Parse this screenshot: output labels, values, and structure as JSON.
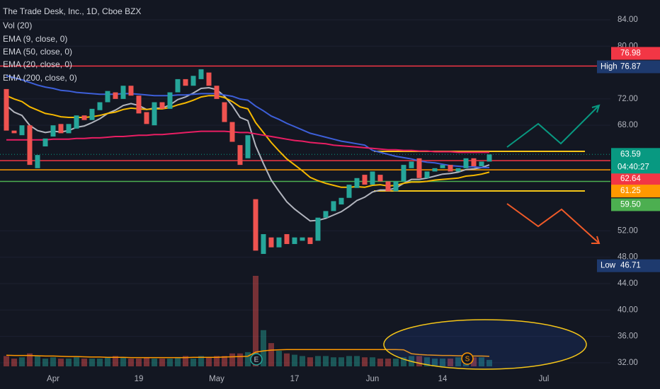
{
  "chart_data": {
    "type": "candlestick",
    "title": "The Trade Desk, Inc., 1D, Cboe BZX",
    "volume_name": "Vol (20)",
    "categories": [
      null,
      null,
      null,
      null,
      null,
      null,
      "Apr",
      null,
      null,
      null,
      null,
      null,
      null,
      null,
      null,
      null,
      null,
      "19",
      null,
      null,
      null,
      null,
      null,
      null,
      null,
      null,
      null,
      "May",
      null,
      null,
      null,
      null,
      null,
      null,
      null,
      null,
      null,
      "17",
      null,
      null,
      null,
      null,
      null,
      null,
      null,
      null,
      null,
      "Jun",
      null,
      null,
      null,
      null,
      null,
      null,
      null,
      null,
      "14",
      null,
      null,
      null,
      null,
      null,
      null,
      null,
      null,
      null,
      null,
      null,
      null,
      "Jul"
    ],
    "open": [
      73.5,
      67.2,
      66.5,
      68.0,
      61.5,
      64.8,
      66.3,
      68.2,
      66.8,
      67.5,
      69.5,
      68.8,
      70.3,
      71.5,
      73.0,
      72.0,
      74.0,
      72.5,
      70.0,
      68.0,
      71.5,
      70.5,
      73.0,
      75.0,
      74.0,
      75.0,
      76.0,
      74.0,
      71.5,
      68.5,
      65.0,
      63.0,
      56.8,
      48.5,
      51.0,
      49.5,
      51.5,
      50.0,
      50.5,
      51.0,
      50.5,
      54.0,
      55.0,
      56.0,
      57.0,
      58.5,
      60.5,
      59.0,
      60.5,
      59.5,
      58.0,
      59.5,
      61.5,
      63.0,
      60.0,
      61.0,
      61.5,
      62.0,
      61.0,
      61.5,
      63.0,
      61.8,
      62.5,
      null,
      null,
      null,
      null,
      null,
      null,
      null
    ],
    "high": {
      "label": "High",
      "value": 76.87
    },
    "low": {
      "label": "Low",
      "value": 46.71
    },
    "close": [
      67.2,
      66.8,
      68.0,
      62.0,
      63.5,
      66.0,
      68.0,
      66.8,
      68.2,
      69.5,
      68.8,
      70.5,
      71.5,
      73.2,
      72.0,
      74.0,
      72.5,
      69.8,
      68.2,
      71.5,
      70.5,
      73.0,
      75.0,
      74.0,
      75.5,
      76.5,
      74.0,
      72.0,
      68.5,
      65.5,
      62.0,
      66.5,
      49.0,
      51.5,
      49.5,
      51.0,
      50.0,
      51.0,
      51.0,
      50.0,
      54.0,
      55.0,
      56.5,
      57.0,
      59.0,
      60.0,
      59.0,
      61.0,
      59.5,
      58.0,
      59.5,
      62.0,
      62.5,
      60.0,
      61.0,
      61.5,
      62.0,
      61.0,
      61.5,
      63.0,
      61.8,
      62.5,
      63.59,
      null,
      null,
      null,
      null,
      null,
      null,
      null
    ],
    "volume": [
      4,
      3,
      3.5,
      5,
      4,
      3,
      3.5,
      3,
      3,
      3.5,
      3,
      3,
      3,
      3.5,
      4,
      3.5,
      3,
      3,
      3.5,
      3,
      3,
      3,
      3.5,
      4,
      3,
      4,
      3.5,
      4,
      4,
      5,
      5,
      5.5,
      35,
      14,
      9,
      6,
      5,
      4.5,
      4,
      3.5,
      4,
      4,
      3.5,
      3.5,
      4,
      4,
      3.5,
      3.5,
      3,
      3,
      3,
      3.5,
      4,
      4,
      3.5,
      3,
      3,
      3,
      3.5,
      3,
      3.5,
      3.5,
      2.5,
      null,
      null,
      null,
      null,
      null,
      null,
      null
    ],
    "volume_ma": [
      4.3,
      4.2,
      4.2,
      4.2,
      4.1,
      4.0,
      4.0,
      3.9,
      3.8,
      3.8,
      3.7,
      3.6,
      3.6,
      3.5,
      3.5,
      3.5,
      3.4,
      3.4,
      3.4,
      3.4,
      3.4,
      3.4,
      3.4,
      3.4,
      3.5,
      3.5,
      3.5,
      3.5,
      3.6,
      3.7,
      3.8,
      3.9,
      5.5,
      6.0,
      6.3,
      6.4,
      6.5,
      6.5,
      6.5,
      6.5,
      6.5,
      6.5,
      6.5,
      6.5,
      6.5,
      6.5,
      6.5,
      6.5,
      6.5,
      6.5,
      6.5,
      6.4,
      4.9,
      4.6,
      4.4,
      4.3,
      4.2,
      4.2,
      4.1,
      4.1,
      4.0,
      4.0,
      3.9,
      null,
      null,
      null,
      null,
      null,
      null,
      null
    ],
    "volume_ma_color": "#ff9800",
    "up_color": "#26a69a",
    "down_color": "#ef5350",
    "series": [
      {
        "name": "EMA (9, close, 0)",
        "color": "#b2b5be",
        "values": [
          71.0,
          70.0,
          69.5,
          68.0,
          67.2,
          66.9,
          67.1,
          67.0,
          67.2,
          67.7,
          67.9,
          68.4,
          69.0,
          69.8,
          70.3,
          71.0,
          71.3,
          71.0,
          70.4,
          70.6,
          70.6,
          71.1,
          71.9,
          72.3,
          72.9,
          73.6,
          73.7,
          73.4,
          72.4,
          71.0,
          69.2,
          68.7,
          64.9,
          62.2,
          59.7,
          58.0,
          56.4,
          55.3,
          54.4,
          53.5,
          53.6,
          53.9,
          54.4,
          54.9,
          55.7,
          56.6,
          57.1,
          57.9,
          58.2,
          58.2,
          58.5,
          59.2,
          59.8,
          59.8,
          60.0,
          60.3,
          60.6,
          60.7,
          60.9,
          61.3,
          61.4,
          61.6,
          62.0,
          null,
          null,
          null,
          null,
          null,
          null,
          null
        ]
      },
      {
        "name": "EMA (50, close, 0)",
        "color": "#3d5fd9",
        "values": [
          75.5,
          75.2,
          74.9,
          74.5,
          74.1,
          73.8,
          73.6,
          73.3,
          73.2,
          73.0,
          72.9,
          72.8,
          72.7,
          72.7,
          72.7,
          72.8,
          72.8,
          72.7,
          72.6,
          72.5,
          72.5,
          72.5,
          72.6,
          72.6,
          72.7,
          72.8,
          72.8,
          72.8,
          72.6,
          72.4,
          72.0,
          71.8,
          70.9,
          70.2,
          69.4,
          68.9,
          68.3,
          67.8,
          67.3,
          66.8,
          66.5,
          66.2,
          65.9,
          65.6,
          65.4,
          65.2,
          65.0,
          64.2,
          63.9,
          63.6,
          63.3,
          63.1,
          62.9,
          62.6,
          62.4,
          62.3,
          62.1,
          61.9,
          61.8,
          61.7,
          61.7,
          61.6,
          61.6,
          null,
          null,
          null,
          null,
          null,
          null,
          null
        ]
      },
      {
        "name": "EMA (20, close, 0)",
        "color": "#f5b800",
        "values": [
          72.5,
          72.0,
          71.6,
          70.8,
          70.3,
          69.8,
          69.6,
          69.3,
          69.2,
          69.2,
          69.2,
          69.3,
          69.5,
          69.8,
          70.0,
          70.4,
          70.6,
          70.5,
          70.4,
          70.5,
          70.5,
          70.7,
          71.1,
          71.4,
          71.8,
          72.3,
          72.5,
          72.5,
          72.2,
          71.6,
          70.8,
          70.5,
          68.4,
          66.9,
          65.4,
          64.1,
          62.9,
          62.0,
          61.1,
          60.1,
          59.6,
          59.2,
          58.9,
          58.6,
          58.6,
          58.7,
          58.6,
          58.9,
          59.0,
          58.8,
          58.9,
          59.2,
          59.4,
          59.4,
          59.5,
          59.7,
          59.8,
          59.9,
          60.0,
          60.3,
          60.4,
          60.6,
          60.9,
          null,
          null,
          null,
          null,
          null,
          null,
          null
        ]
      },
      {
        "name": "EMA (200, close, 0)",
        "color": "#e91e63",
        "values": [
          65.8,
          65.8,
          65.8,
          65.8,
          65.8,
          65.8,
          65.9,
          65.9,
          65.9,
          66.0,
          66.0,
          66.1,
          66.1,
          66.2,
          66.3,
          66.3,
          66.4,
          66.5,
          66.5,
          66.6,
          66.6,
          66.7,
          66.8,
          66.9,
          67.0,
          67.1,
          67.1,
          67.1,
          67.1,
          67.0,
          66.9,
          66.9,
          66.7,
          66.5,
          66.3,
          66.1,
          65.9,
          65.7,
          65.6,
          65.4,
          65.3,
          65.2,
          65.0,
          64.9,
          64.8,
          64.7,
          64.6,
          64.5,
          64.4,
          64.3,
          64.3,
          64.2,
          64.2,
          64.1,
          64.1,
          64.0,
          64.0,
          64.0,
          63.9,
          63.9,
          63.9,
          63.9,
          63.9,
          null,
          null,
          null,
          null,
          null,
          null,
          null
        ]
      }
    ],
    "ylim": [
      30.7,
      87.0
    ],
    "yticks": [
      {
        "value": 84,
        "label": "84.00"
      },
      {
        "value": 80,
        "label": "80.00"
      },
      {
        "value": 72,
        "label": "72.00"
      },
      {
        "value": 68,
        "label": "68.00"
      },
      {
        "value": 52,
        "label": "52.00"
      },
      {
        "value": 48,
        "label": "48.00"
      },
      {
        "value": 44,
        "label": "44.00"
      },
      {
        "value": 40,
        "label": "40.00"
      },
      {
        "value": 36,
        "label": "36.00"
      },
      {
        "value": 32,
        "label": "32.00"
      }
    ],
    "grid": true,
    "levels": [
      {
        "value": 76.98,
        "color": "#f23645"
      },
      {
        "value": 62.64,
        "color": "#f23645"
      },
      {
        "value": 61.25,
        "color": "#ff9800"
      },
      {
        "value": 59.5,
        "label": "59.50",
        "color": "#4caf50"
      }
    ],
    "last": {
      "value": 63.59,
      "countdown": "04:40:27",
      "color": "#089981"
    },
    "events": {
      "earnings": "E",
      "split": "S"
    }
  }
}
